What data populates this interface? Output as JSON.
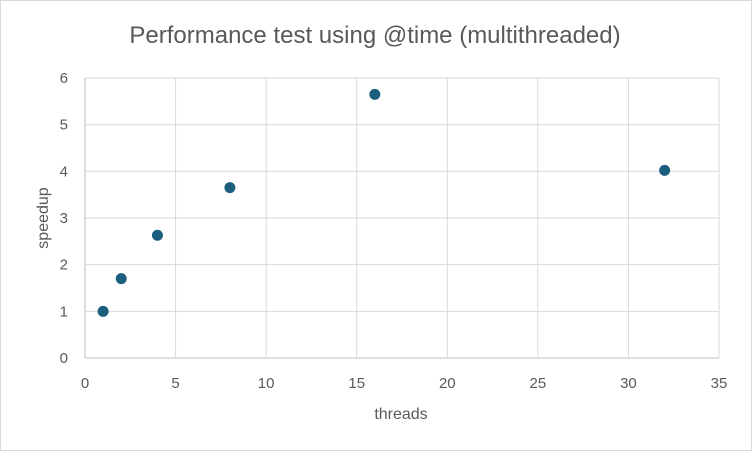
{
  "chart_data": {
    "type": "scatter",
    "title": "Performance test using @time (multithreaded)",
    "xlabel": "threads",
    "ylabel": "speedup",
    "xlim": [
      0,
      35
    ],
    "ylim": [
      0,
      6
    ],
    "x_ticks": [
      "0",
      "5",
      "10",
      "15",
      "20",
      "25",
      "30",
      "35"
    ],
    "y_ticks": [
      "0",
      "1",
      "2",
      "3",
      "4",
      "5",
      "6"
    ],
    "grid": true,
    "marker_color": "#1b5e7e",
    "series": [
      {
        "points": [
          {
            "x": 1,
            "y": 1.0
          },
          {
            "x": 2,
            "y": 1.7
          },
          {
            "x": 4,
            "y": 2.63
          },
          {
            "x": 8,
            "y": 3.65
          },
          {
            "x": 16,
            "y": 5.65
          },
          {
            "x": 32,
            "y": 4.02
          }
        ]
      }
    ]
  }
}
